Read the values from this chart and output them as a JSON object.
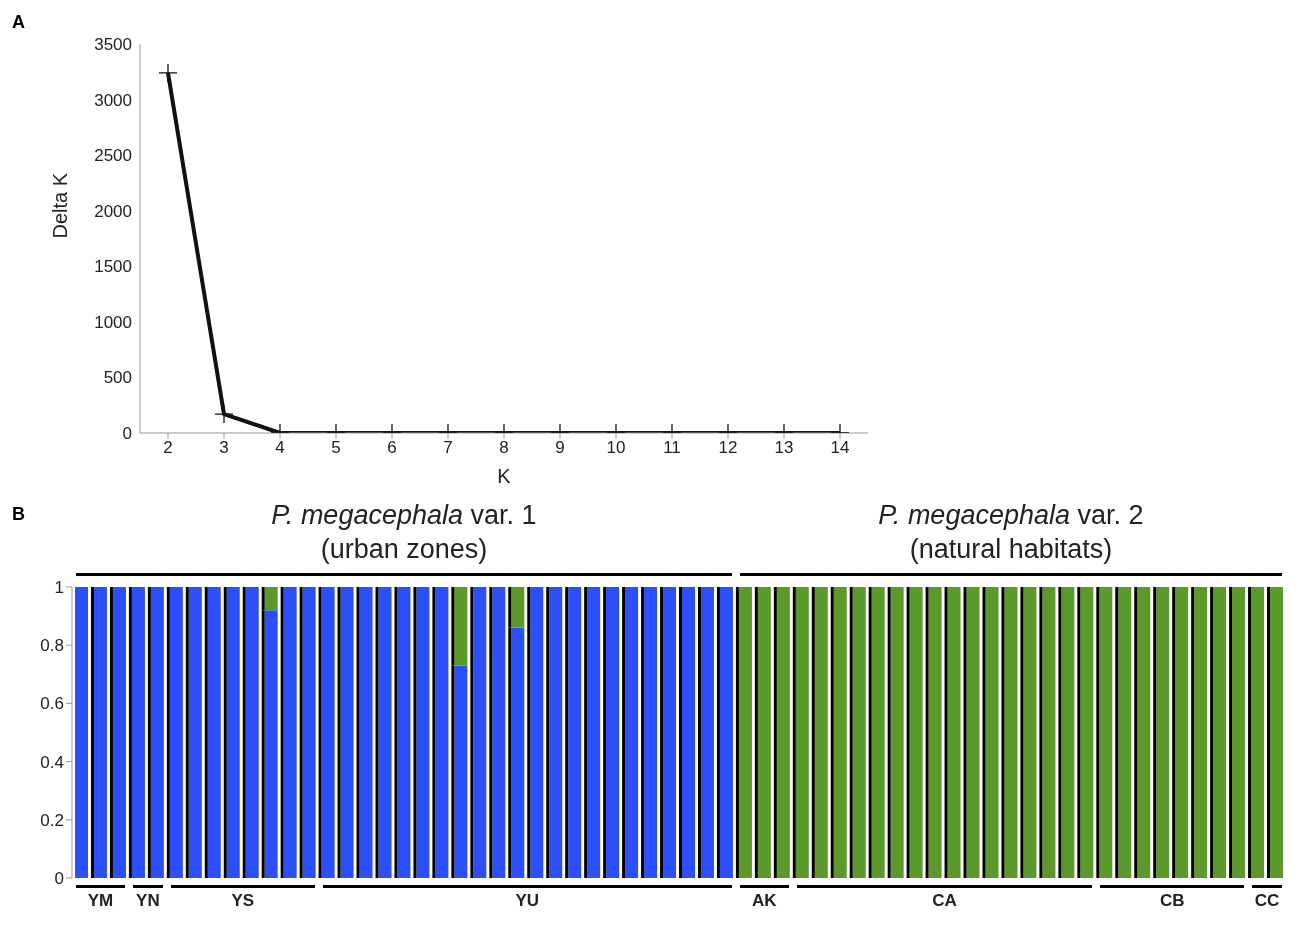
{
  "chart_data": [
    {
      "type": "line",
      "title": "A",
      "xlabel": "K",
      "ylabel": "Delta K",
      "categories": [
        "2",
        "3",
        "4",
        "5",
        "6",
        "7",
        "8",
        "9",
        "10",
        "11",
        "12",
        "13",
        "14"
      ],
      "series": [
        {
          "color": "#111111",
          "values": [
            3240,
            170,
            0,
            0,
            0,
            0,
            0,
            0,
            0,
            0,
            0,
            0,
            0
          ]
        }
      ],
      "ylim": [
        0,
        3500
      ],
      "yticks": [
        0,
        500,
        1000,
        1500,
        2000,
        2500,
        3000,
        3500
      ],
      "grid": false,
      "legend": false,
      "marker": "cross",
      "line_style": "solid"
    },
    {
      "type": "bar",
      "stacked": true,
      "title": "B",
      "categories": [
        null,
        null,
        null,
        null,
        null,
        null,
        null,
        null,
        null,
        null,
        null,
        null,
        null,
        null,
        null,
        null,
        null,
        null,
        null,
        null,
        null,
        null,
        null,
        null,
        null,
        null,
        null,
        null,
        null,
        null,
        null,
        null,
        null,
        null,
        null,
        null,
        null,
        null,
        null,
        null,
        null,
        null,
        null,
        null,
        null,
        null,
        null,
        null,
        null,
        null,
        null,
        null,
        null,
        null,
        null,
        null,
        null,
        null,
        null,
        null,
        null,
        null,
        null,
        null
      ],
      "series": [
        {
          "color": "#2b50fb",
          "values": [
            1,
            1,
            1,
            1,
            1,
            1,
            1,
            1,
            1,
            1,
            0.92,
            1,
            1,
            1,
            1,
            1,
            1,
            1,
            1,
            1,
            0.73,
            1,
            1,
            0.86,
            1,
            1,
            1,
            1,
            1,
            1,
            1,
            1,
            1,
            1,
            1,
            0,
            0,
            0,
            0,
            0,
            0,
            0,
            0,
            0,
            0,
            0,
            0,
            0,
            0,
            0,
            0,
            0,
            0,
            0,
            0,
            0,
            0,
            0,
            0,
            0,
            0,
            0,
            0,
            0
          ]
        },
        {
          "color": "#5b9a2a",
          "values": [
            0,
            0,
            0,
            0,
            0,
            0,
            0,
            0,
            0,
            0,
            0.08,
            0,
            0,
            0,
            0,
            0,
            0,
            0,
            0,
            0,
            0.27,
            0,
            0,
            0.14,
            0,
            0,
            0,
            0,
            0,
            0,
            0,
            0,
            0,
            0,
            0,
            1,
            1,
            1,
            1,
            1,
            1,
            1,
            1,
            1,
            1,
            1,
            1,
            1,
            1,
            1,
            1,
            1,
            1,
            1,
            1,
            1,
            1,
            1,
            1,
            1,
            1,
            1,
            1,
            1
          ]
        }
      ],
      "ylim": [
        0,
        1
      ],
      "yticks": [
        0,
        0.2,
        0.4,
        0.6,
        0.8,
        1
      ],
      "tick_labels": "y",
      "grid": false,
      "legend": false,
      "annotations": [
        "P. megacephala var. 1",
        "(urban zones)",
        "P. megacephala var. 2",
        "(natural habitats)",
        "YM",
        "YN",
        "YS",
        "YU",
        "AK",
        "CA",
        "CB",
        "CC"
      ]
    }
  ]
}
